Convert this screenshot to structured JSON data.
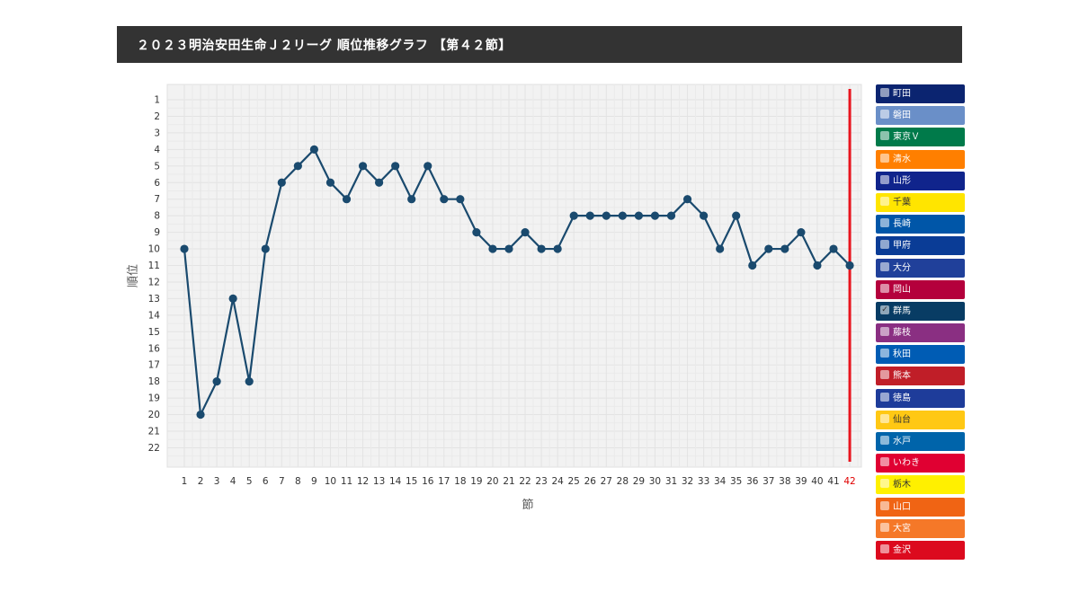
{
  "title": "２０２３明治安田生命Ｊ２リーグ 順位推移グラフ 【第４２節】",
  "chart_data": {
    "type": "line",
    "xlabel": "節",
    "ylabel": "順位",
    "x": [
      1,
      2,
      3,
      4,
      5,
      6,
      7,
      8,
      9,
      10,
      11,
      12,
      13,
      14,
      15,
      16,
      17,
      18,
      19,
      20,
      21,
      22,
      23,
      24,
      25,
      26,
      27,
      28,
      29,
      30,
      31,
      32,
      33,
      34,
      35,
      36,
      37,
      38,
      39,
      40,
      41,
      42
    ],
    "y_ticks": [
      1,
      2,
      3,
      4,
      5,
      6,
      7,
      8,
      9,
      10,
      11,
      12,
      13,
      14,
      15,
      16,
      17,
      18,
      19,
      20,
      21,
      22
    ],
    "ylim": [
      22,
      1
    ],
    "y_inverted": true,
    "grid": true,
    "current_round": 42,
    "series": [
      {
        "name": "群馬",
        "color": "#1a4a6e",
        "values": [
          10,
          20,
          18,
          13,
          18,
          10,
          6,
          5,
          4,
          6,
          7,
          5,
          6,
          5,
          7,
          5,
          7,
          7,
          9,
          10,
          10,
          9,
          10,
          10,
          8,
          8,
          8,
          8,
          8,
          8,
          8,
          7,
          8,
          10,
          8,
          11,
          10,
          10,
          9,
          11,
          10,
          11
        ]
      }
    ]
  },
  "legend": [
    {
      "label": "町田",
      "color": "#0b2470",
      "checked": false
    },
    {
      "label": "磐田",
      "color": "#6a8fc8",
      "checked": false
    },
    {
      "label": "東京Ｖ",
      "color": "#007a4a",
      "checked": false
    },
    {
      "label": "清水",
      "color": "#ff7f00",
      "checked": false
    },
    {
      "label": "山形",
      "color": "#10248c",
      "checked": false
    },
    {
      "label": "千葉",
      "color": "#ffe500",
      "checked": false
    },
    {
      "label": "長崎",
      "color": "#0056a8",
      "checked": false
    },
    {
      "label": "甲府",
      "color": "#0a3c96",
      "checked": false
    },
    {
      "label": "大分",
      "color": "#20409a",
      "checked": false
    },
    {
      "label": "岡山",
      "color": "#b4003c",
      "checked": false
    },
    {
      "label": "群馬",
      "color": "#083c64",
      "checked": true
    },
    {
      "label": "藤枝",
      "color": "#8a2f82",
      "checked": false
    },
    {
      "label": "秋田",
      "color": "#005cb4",
      "checked": false
    },
    {
      "label": "熊本",
      "color": "#c01e28",
      "checked": false
    },
    {
      "label": "徳島",
      "color": "#1e3c9a",
      "checked": false
    },
    {
      "label": "仙台",
      "color": "#ffc814",
      "checked": false
    },
    {
      "label": "水戸",
      "color": "#0064aa",
      "checked": false
    },
    {
      "label": "いわき",
      "color": "#e00032",
      "checked": false
    },
    {
      "label": "栃木",
      "color": "#fff000",
      "checked": false
    },
    {
      "label": "山口",
      "color": "#f06414",
      "checked": false
    },
    {
      "label": "大宮",
      "color": "#f57828",
      "checked": false
    },
    {
      "label": "金沢",
      "color": "#dc0a1e",
      "checked": false
    }
  ]
}
